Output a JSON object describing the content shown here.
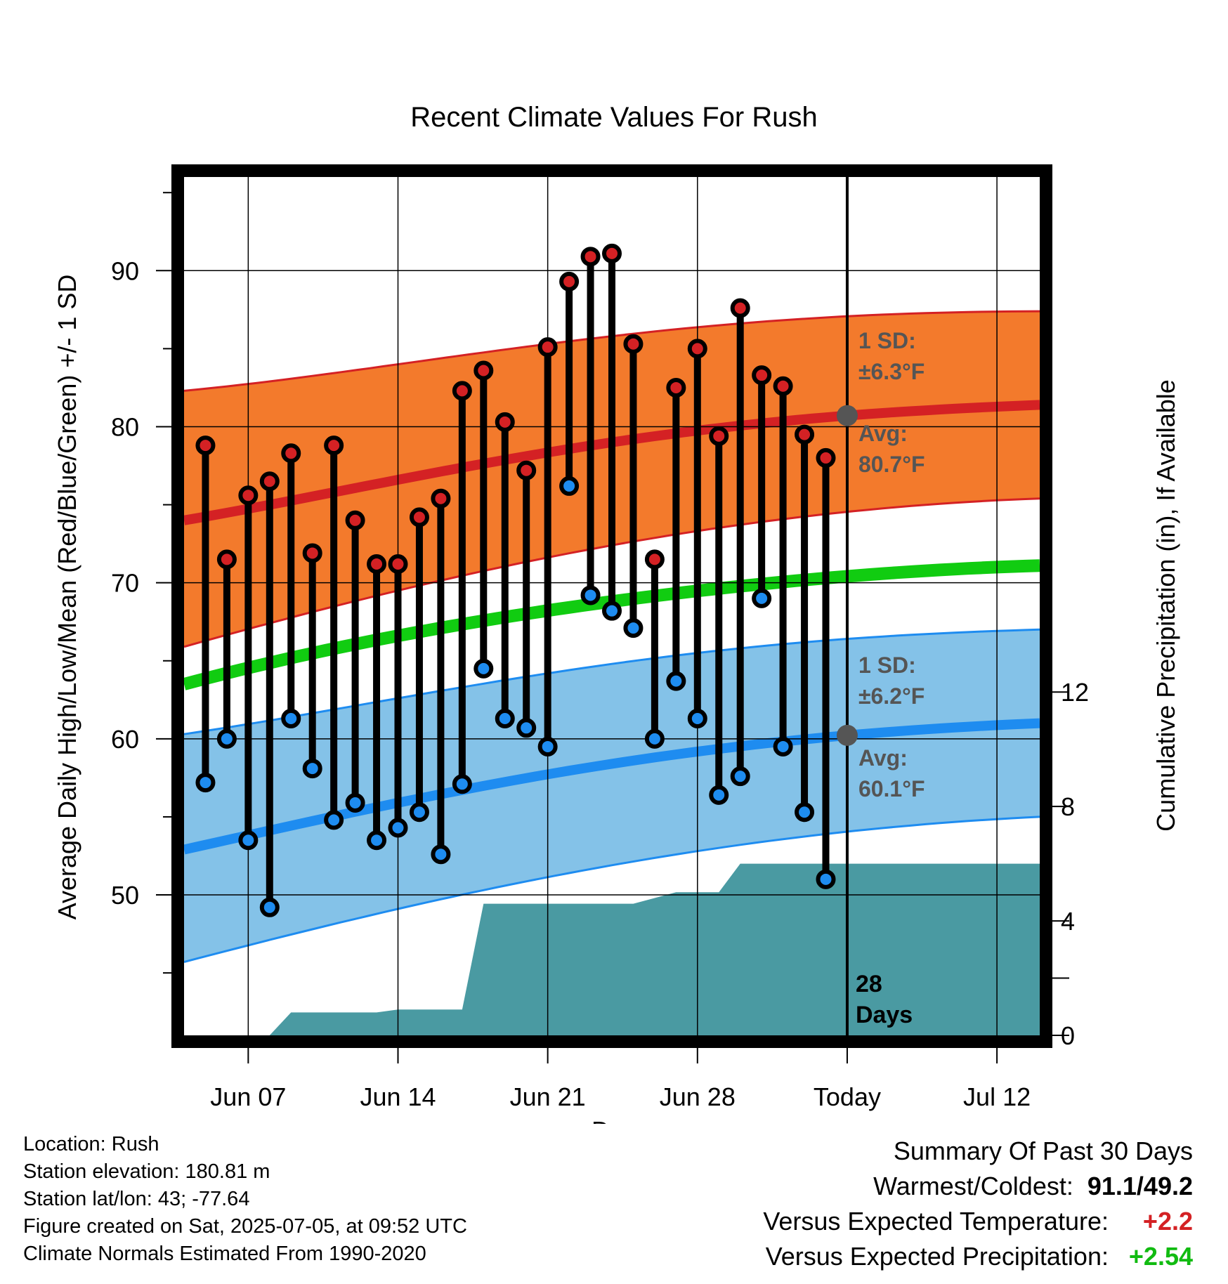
{
  "chart_data": {
    "type": "line",
    "title": "Recent Climate Values For Rush",
    "xlabel": "Day",
    "ylabel": "Average Daily High/Low/Mean (Red/Blue/Green) +/- 1 SD",
    "y2label": "Cumulative Precipitation (in), If Available",
    "x_tick_labels": [
      "Jun 07",
      "Jun 14",
      "Jun 21",
      "Jun 28",
      "Today",
      "Jul 12"
    ],
    "x_tick_dates": [
      "2025-06-07",
      "2025-06-14",
      "2025-06-21",
      "2025-06-28",
      "2025-07-05",
      "2025-07-12"
    ],
    "xlim": [
      "2025-06-04",
      "2025-07-14"
    ],
    "ylim": [
      41,
      96
    ],
    "y_ticks": [
      50,
      60,
      70,
      80,
      90
    ],
    "y2lim": [
      0,
      30
    ],
    "y2_ticks": [
      0,
      4,
      8,
      12
    ],
    "today": "2025-07-05",
    "today_note": [
      "28",
      "Days"
    ],
    "observed": {
      "dates": [
        "2025-06-05",
        "2025-06-06",
        "2025-06-07",
        "2025-06-08",
        "2025-06-09",
        "2025-06-10",
        "2025-06-11",
        "2025-06-12",
        "2025-06-13",
        "2025-06-14",
        "2025-06-15",
        "2025-06-16",
        "2025-06-17",
        "2025-06-18",
        "2025-06-19",
        "2025-06-20",
        "2025-06-21",
        "2025-06-22",
        "2025-06-23",
        "2025-06-24",
        "2025-06-25",
        "2025-06-26",
        "2025-06-27",
        "2025-06-28",
        "2025-06-29",
        "2025-06-30",
        "2025-07-01",
        "2025-07-02",
        "2025-07-03",
        "2025-07-04"
      ],
      "high": [
        78.8,
        71.5,
        75.6,
        76.5,
        78.3,
        71.9,
        78.8,
        74.0,
        71.2,
        71.2,
        74.2,
        75.4,
        82.3,
        83.6,
        80.3,
        77.2,
        85.1,
        89.3,
        90.9,
        91.1,
        85.3,
        71.5,
        82.5,
        85.0,
        79.4,
        87.6,
        83.3,
        82.6,
        79.5,
        78.0
      ],
      "low": [
        57.2,
        60.0,
        53.5,
        49.2,
        61.3,
        58.1,
        54.8,
        55.9,
        53.5,
        54.3,
        55.3,
        52.6,
        57.1,
        64.5,
        61.3,
        60.7,
        59.5,
        76.2,
        69.2,
        68.2,
        67.1,
        60.0,
        63.7,
        61.3,
        56.4,
        57.6,
        69.0,
        59.5,
        55.3,
        51.0
      ]
    },
    "normals": {
      "dates": [
        "2025-06-04",
        "2025-06-14",
        "2025-06-24",
        "2025-07-04",
        "2025-07-14"
      ],
      "high_avg": [
        74.0,
        76.6,
        79.0,
        80.6,
        81.4
      ],
      "high_sd_upper": [
        82.3,
        84.0,
        85.8,
        87.0,
        87.4
      ],
      "high_sd_lower": [
        65.9,
        69.5,
        72.4,
        74.4,
        75.4
      ],
      "mean_avg": [
        63.5,
        66.6,
        68.8,
        70.3,
        71.1
      ],
      "low_avg": [
        52.9,
        55.9,
        58.4,
        60.1,
        61.0
      ],
      "low_sd_upper": [
        60.3,
        62.6,
        64.8,
        66.3,
        67.0
      ],
      "low_sd_lower": [
        45.7,
        49.1,
        51.9,
        53.9,
        55.0
      ]
    },
    "precipitation": {
      "dates": [
        "2025-06-07",
        "2025-06-08",
        "2025-06-09",
        "2025-06-10",
        "2025-06-12",
        "2025-06-13",
        "2025-06-14",
        "2025-06-16",
        "2025-06-17",
        "2025-06-18",
        "2025-06-19",
        "2025-06-21",
        "2025-06-22",
        "2025-06-25",
        "2025-06-26",
        "2025-06-27",
        "2025-06-28",
        "2025-06-29",
        "2025-06-30",
        "2025-07-01",
        "2025-07-02",
        "2025-07-05",
        "2025-07-14"
      ],
      "cumulative": [
        0.0,
        0.0,
        0.8,
        0.8,
        0.8,
        0.8,
        0.9,
        0.9,
        0.9,
        4.6,
        4.6,
        4.6,
        4.6,
        4.6,
        4.8,
        5.0,
        5.0,
        5.0,
        6.0,
        6.0,
        6.0,
        6.0,
        6.0
      ]
    },
    "bands": {
      "high_sd_label": "1 SD:",
      "high_sd_value": "±6.3°F",
      "high_avg_label": "Avg:",
      "high_avg_value": "80.7°F",
      "low_sd_label": "1 SD:",
      "low_sd_value": "±6.2°F",
      "low_avg_label": "Avg:",
      "low_avg_value": "60.1°F"
    },
    "colors": {
      "high_band": "#f37a2c",
      "high_line": "#d42124",
      "low_band": "#84c2e8",
      "low_line": "#1e8cf0",
      "mean_line": "#11cc11",
      "precip": "#4a9aa2",
      "high_marker": "#d42124",
      "low_marker": "#1e8cf0",
      "avg_marker": "#555555"
    }
  },
  "meta": {
    "location": "Location: Rush",
    "elevation": "Station elevation: 180.81 m",
    "latlon": "Station lat/lon: 43; -77.64",
    "created": "Figure created on Sat, 2025-07-05, at 09:52 UTC",
    "normals": "Climate Normals Estimated From 1990-2020"
  },
  "summary": {
    "title": "Summary Of Past 30 Days",
    "warm_cold_label": "Warmest/Coldest:",
    "warm_cold_value": "91.1/49.2",
    "temp_label": "Versus Expected Temperature:",
    "temp_value": "+2.2",
    "temp_color": "#d42124",
    "precip_label": "Versus Expected Precipitation:",
    "precip_value": "+2.54",
    "precip_color": "#11bb11"
  }
}
